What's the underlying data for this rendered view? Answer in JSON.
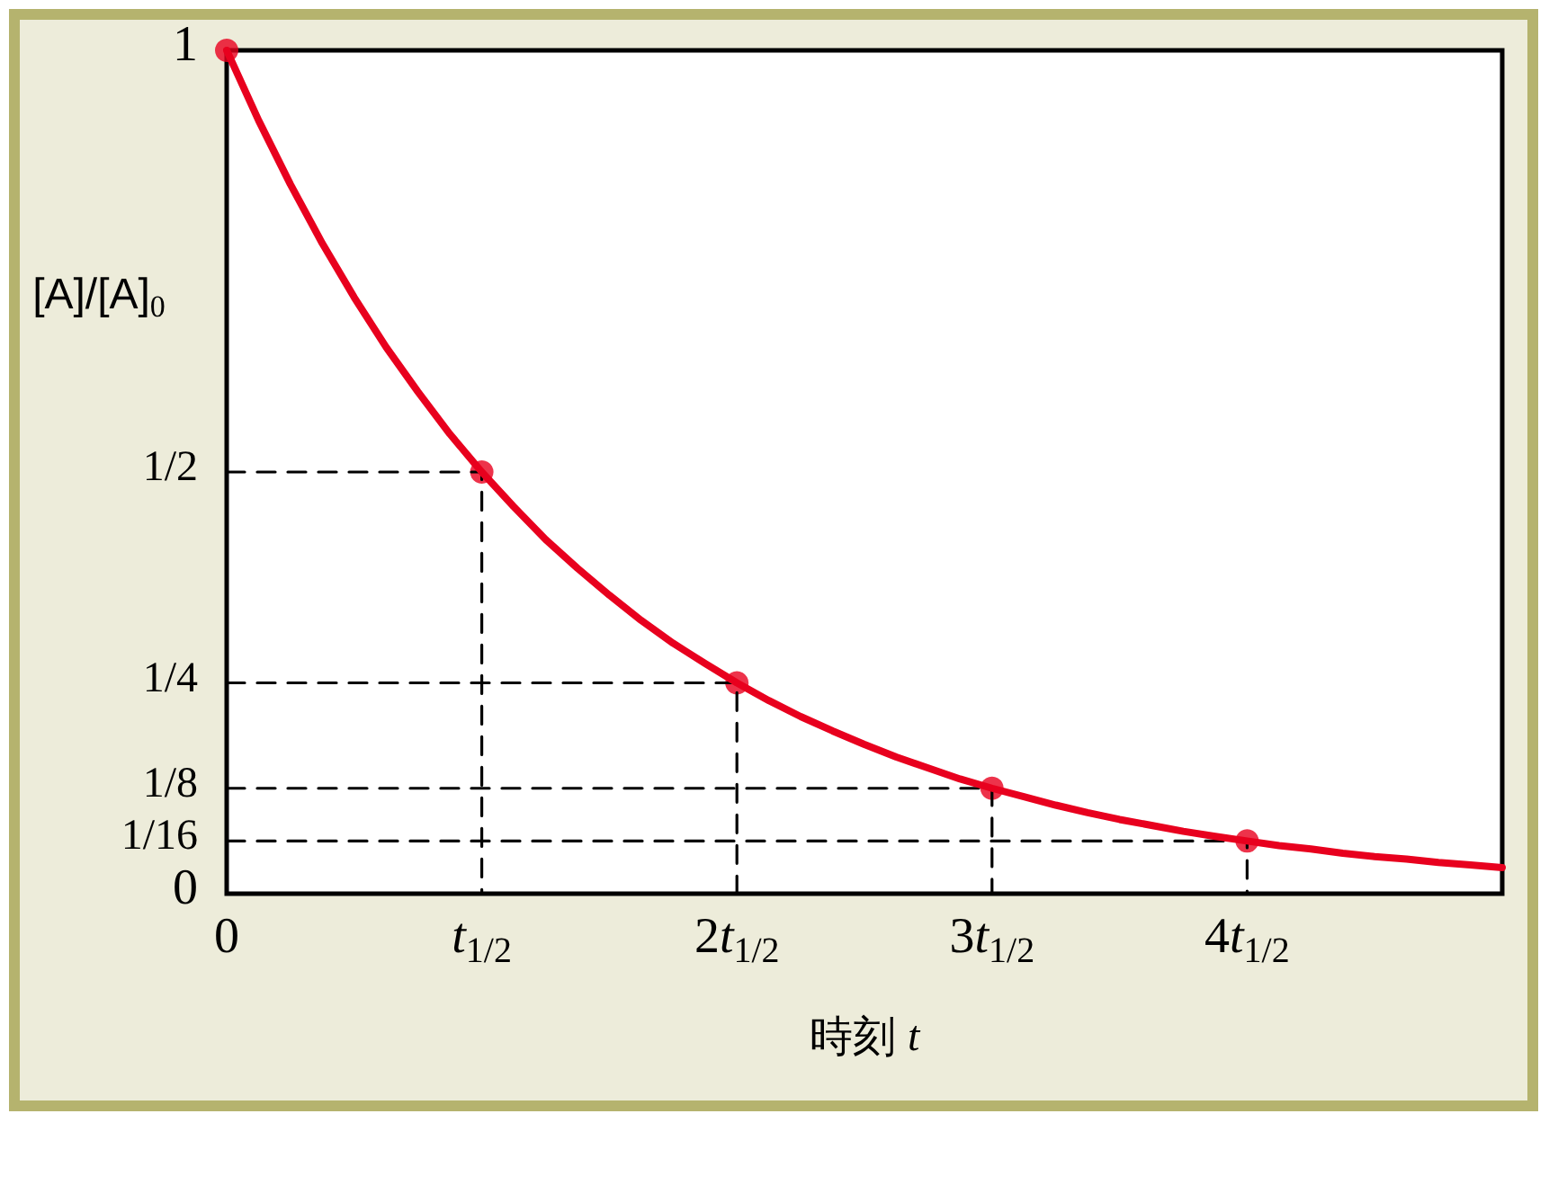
{
  "chart_data": {
    "type": "line",
    "xlabel": "時刻 t",
    "ylabel": "[A]/[A]$_{0}$",
    "categories": [
      "0",
      null,
      null,
      null,
      null,
      null,
      null,
      null,
      "t$_{1/2}$",
      null,
      null,
      null,
      null,
      null,
      null,
      null,
      "2t$_{1/2}$",
      null,
      null,
      null,
      null,
      null,
      null,
      null,
      "3t$_{1/2}$",
      null,
      null,
      null,
      null,
      null,
      null,
      null,
      "4t$_{1/2}$",
      null,
      null,
      null,
      null,
      null,
      null,
      null,
      null
    ],
    "ylim": [
      0,
      1
    ],
    "yticks": [
      0,
      {
        "value": 0.0625,
        "label": "1/16"
      },
      {
        "value": 0.125,
        "label": "1/8"
      },
      {
        "value": 0.25,
        "label": "1/4"
      },
      {
        "value": 0.5,
        "label": "1/2"
      },
      1
    ],
    "grid": false,
    "series": [
      {
        "color": "#000000",
        "line_style": "dashed",
        "marker": "none",
        "x": [
          "0",
          "t$_{1/2}$",
          "t$_{1/2}$"
        ],
        "values": [
          0.5,
          0.5,
          0
        ]
      },
      {
        "color": "#000000",
        "line_style": "dashed",
        "marker": "none",
        "x": [
          "0",
          "2t$_{1/2}$",
          "2t$_{1/2}$"
        ],
        "values": [
          0.25,
          0.25,
          0
        ]
      },
      {
        "color": "#000000",
        "line_style": "dashed",
        "marker": "none",
        "x": [
          "0",
          "3t$_{1/2}$",
          "3t$_{1/2}$"
        ],
        "values": [
          0.125,
          0.125,
          0
        ]
      },
      {
        "color": "#000000",
        "line_style": "dashed",
        "marker": "none",
        "x": [
          "0",
          "4t$_{1/2}$",
          "4t$_{1/2}$"
        ],
        "values": [
          0.0625,
          0.0625,
          0
        ]
      },
      {
        "color": "#e8001e",
        "line_style": "solid",
        "marker": "none",
        "values": [
          1,
          0.917,
          0.841,
          0.771,
          0.707,
          0.648,
          0.595,
          0.545,
          0.5,
          0.459,
          0.42,
          0.386,
          0.354,
          0.324,
          0.297,
          0.273,
          0.25,
          0.229,
          0.21,
          0.193,
          0.177,
          0.162,
          0.149,
          0.136,
          0.125,
          0.115,
          0.105,
          0.096,
          0.088,
          0.081,
          0.074,
          0.068,
          0.0625,
          0.057,
          0.053,
          0.048,
          0.044,
          0.041,
          0.037,
          0.034,
          0.031
        ]
      },
      {
        "type": "scatter",
        "color": "#e8001e",
        "marker": "circle",
        "x": [
          "0",
          "t$_{1/2}$",
          "2t$_{1/2}$",
          "3t$_{1/2}$",
          "4t$_{1/2}$"
        ],
        "values": [
          1,
          0.5,
          0.25,
          0.125,
          0.0625
        ]
      }
    ]
  }
}
